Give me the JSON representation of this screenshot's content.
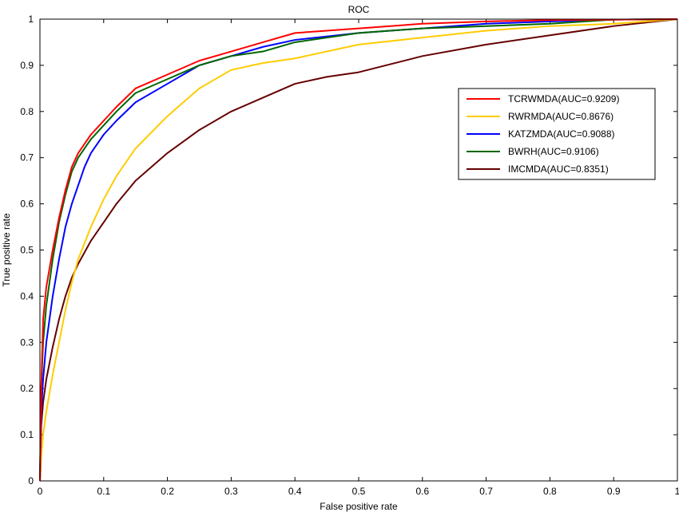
{
  "chart_data": {
    "type": "line",
    "title": "ROC",
    "xlabel": "False positive rate",
    "ylabel": "True positive rate",
    "xlim": [
      0,
      1
    ],
    "ylim": [
      0,
      1
    ],
    "xticks": [
      "0",
      "0.1",
      "0.2",
      "0.3",
      "0.4",
      "0.5",
      "0.6",
      "0.7",
      "0.8",
      "0.9",
      "1"
    ],
    "yticks": [
      "0",
      "0.1",
      "0.2",
      "0.3",
      "0.4",
      "0.5",
      "0.6",
      "0.7",
      "0.8",
      "0.9",
      "1"
    ],
    "grid": false,
    "legend_position": "top-right",
    "series": [
      {
        "name": "TCRWMDA(AUC=0.9209)",
        "color": "#ff0000",
        "x": [
          0,
          0.002,
          0.005,
          0.01,
          0.02,
          0.03,
          0.04,
          0.05,
          0.06,
          0.07,
          0.08,
          0.1,
          0.12,
          0.15,
          0.2,
          0.25,
          0.3,
          0.35,
          0.4,
          0.5,
          0.6,
          0.7,
          0.8,
          0.9,
          1.0
        ],
        "y": [
          0,
          0.2,
          0.35,
          0.42,
          0.5,
          0.57,
          0.63,
          0.68,
          0.71,
          0.73,
          0.75,
          0.78,
          0.81,
          0.85,
          0.88,
          0.91,
          0.93,
          0.95,
          0.97,
          0.98,
          0.99,
          0.995,
          0.998,
          0.999,
          1.0
        ]
      },
      {
        "name": "RWRMDA(AUC=0.8676)",
        "color": "#ffcc00",
        "x": [
          0,
          0.002,
          0.005,
          0.01,
          0.02,
          0.03,
          0.04,
          0.05,
          0.06,
          0.08,
          0.1,
          0.12,
          0.15,
          0.2,
          0.25,
          0.3,
          0.35,
          0.4,
          0.5,
          0.6,
          0.7,
          0.8,
          0.9,
          1.0
        ],
        "y": [
          0,
          0.05,
          0.1,
          0.15,
          0.23,
          0.3,
          0.37,
          0.43,
          0.48,
          0.55,
          0.61,
          0.66,
          0.72,
          0.79,
          0.85,
          0.89,
          0.905,
          0.915,
          0.945,
          0.96,
          0.975,
          0.985,
          0.99,
          1.0
        ]
      },
      {
        "name": "KATZMDA(AUC=0.9088)",
        "color": "#0000ff",
        "x": [
          0,
          0.002,
          0.005,
          0.01,
          0.02,
          0.03,
          0.04,
          0.05,
          0.06,
          0.07,
          0.08,
          0.1,
          0.12,
          0.15,
          0.2,
          0.25,
          0.3,
          0.35,
          0.4,
          0.5,
          0.6,
          0.7,
          0.8,
          0.9,
          1.0
        ],
        "y": [
          0,
          0.15,
          0.22,
          0.3,
          0.4,
          0.48,
          0.55,
          0.6,
          0.64,
          0.68,
          0.71,
          0.75,
          0.78,
          0.82,
          0.86,
          0.9,
          0.92,
          0.94,
          0.955,
          0.97,
          0.98,
          0.99,
          0.995,
          0.999,
          1.0
        ]
      },
      {
        "name": "BWRH(AUC=0.9106)",
        "color": "#006600",
        "x": [
          0,
          0.002,
          0.005,
          0.01,
          0.02,
          0.03,
          0.04,
          0.05,
          0.06,
          0.07,
          0.08,
          0.1,
          0.12,
          0.15,
          0.2,
          0.25,
          0.3,
          0.35,
          0.4,
          0.5,
          0.6,
          0.7,
          0.8,
          0.9,
          1.0
        ],
        "y": [
          0,
          0.2,
          0.3,
          0.38,
          0.48,
          0.56,
          0.62,
          0.67,
          0.7,
          0.72,
          0.74,
          0.77,
          0.8,
          0.84,
          0.87,
          0.9,
          0.92,
          0.93,
          0.95,
          0.97,
          0.98,
          0.985,
          0.99,
          0.999,
          1.0
        ]
      },
      {
        "name": "IMCMDA(AUC=0.8351)",
        "color": "#660000",
        "x": [
          0,
          0.002,
          0.005,
          0.01,
          0.02,
          0.03,
          0.04,
          0.05,
          0.06,
          0.08,
          0.1,
          0.12,
          0.15,
          0.2,
          0.25,
          0.3,
          0.35,
          0.4,
          0.45,
          0.5,
          0.6,
          0.7,
          0.8,
          0.9,
          1.0
        ],
        "y": [
          0,
          0.12,
          0.17,
          0.22,
          0.29,
          0.35,
          0.4,
          0.44,
          0.47,
          0.52,
          0.56,
          0.6,
          0.65,
          0.71,
          0.76,
          0.8,
          0.83,
          0.86,
          0.875,
          0.885,
          0.92,
          0.945,
          0.965,
          0.985,
          1.0
        ]
      }
    ]
  }
}
